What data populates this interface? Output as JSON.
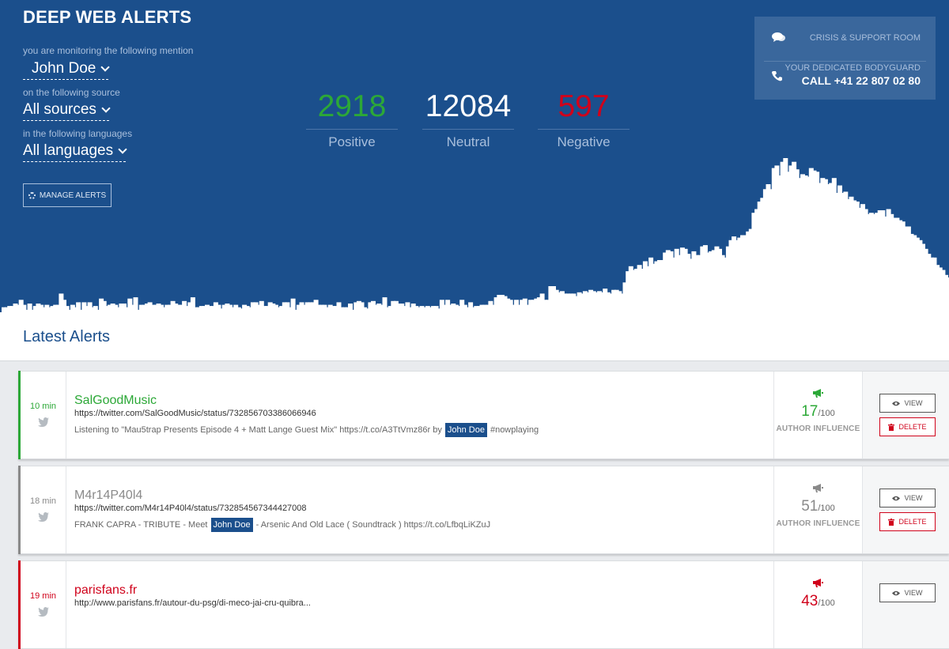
{
  "header": {
    "title": "DEEP WEB ALERTS",
    "monitor_label": "you are monitoring the following mention",
    "mention": "John Doe",
    "source_label": "on the following source",
    "source": "All sources",
    "language_label": "in the following languages",
    "language": "All languages",
    "manage_label": "MANAGE ALERTS"
  },
  "stats": {
    "positive": {
      "value": "2918",
      "label": "Positive",
      "color": "#2ca837"
    },
    "neutral": {
      "value": "12084",
      "label": "Neutral",
      "color": "#ffffff"
    },
    "negative": {
      "value": "597",
      "label": "Negative",
      "color": "#d0021b"
    }
  },
  "support": {
    "crisis_label": "CRISIS & SUPPORT ROOM",
    "bodyguard_label": "YOUR DEDICATED BODYGUARD",
    "phone": "CALL +41 22 807 02 80",
    "crisis_icon": "chat-bubbles-icon",
    "phone_icon": "phone-icon"
  },
  "latest": {
    "title": "Latest Alerts"
  },
  "alerts": [
    {
      "time": "10 min",
      "source": "SalGoodMusic",
      "url": "https://twitter.com/SalGoodMusic/status/732856703386066946",
      "snippet_before": "Listening to \"Mau5trap Presents Episode 4 + Matt Lange Guest Mix\" https://t.co/A3TtVmz86r by",
      "highlight": "John Doe",
      "snippet_after": "#nowplaying",
      "score": "17",
      "score_max": "/100",
      "influence_label": "AUTHOR INFLUENCE",
      "view_label": "VIEW",
      "delete_label": "DELETE",
      "color": "#2ca837"
    },
    {
      "time": "18 min",
      "source": "M4r14P40l4",
      "url": "https://twitter.com/M4r14P40l4/status/732854567344427008",
      "snippet_before": "FRANK CAPRA - TRIBUTE - Meet",
      "highlight": "John Doe",
      "snippet_after": "- Arsenic And Old Lace ( Soundtrack ) https://t.co/LfbqLiKZuJ",
      "score": "51",
      "score_max": "/100",
      "influence_label": "AUTHOR INFLUENCE",
      "view_label": "VIEW",
      "delete_label": "DELETE",
      "color": "#8a8a8a"
    },
    {
      "time": "19 min",
      "source": "parisfans.fr",
      "url": "http://www.parisfans.fr/autour-du-psg/di-meco-jai-cru-quibra...",
      "snippet_before": "",
      "highlight": "",
      "snippet_after": "",
      "score": "43",
      "score_max": "/100",
      "influence_label": "",
      "view_label": "VIEW",
      "delete_label": "",
      "color": "#d0021b"
    }
  ],
  "chart_data": {
    "type": "bar",
    "stacked": true,
    "colors": {
      "neutral": "#ffffff",
      "positive": "#2ca837",
      "negative": "#d0021b"
    },
    "neutral": [
      4,
      4,
      5,
      5,
      7,
      6,
      10,
      6,
      2,
      7,
      2,
      5,
      7,
      6,
      4,
      6,
      4,
      5,
      6,
      6,
      15,
      10,
      5,
      2,
      6,
      4,
      8,
      2,
      8,
      5,
      8,
      4,
      5,
      2,
      11,
      9,
      5,
      6,
      7,
      6,
      4,
      7,
      7,
      4,
      11,
      6,
      12,
      2,
      6,
      6,
      7,
      8,
      6,
      6,
      7,
      6,
      4,
      6,
      6,
      9,
      7,
      6,
      6,
      9,
      5,
      8,
      12,
      4,
      4,
      5,
      5,
      6,
      5,
      5,
      8,
      6,
      3,
      6,
      7,
      6,
      4,
      6,
      4,
      3,
      6,
      5,
      4,
      8,
      8,
      6,
      9,
      5,
      5,
      8,
      7,
      6,
      4,
      5,
      8,
      8,
      4,
      11,
      2,
      6,
      8,
      6,
      8,
      8,
      8,
      10,
      6,
      6,
      6,
      4,
      6,
      5,
      5,
      8,
      4,
      4,
      4,
      7,
      2,
      8,
      9,
      8,
      4,
      3,
      8,
      9,
      6,
      7,
      6,
      12,
      4,
      5,
      9,
      9,
      7,
      7,
      5,
      8,
      4,
      7,
      5,
      4,
      5,
      4,
      5,
      4,
      5,
      5,
      3,
      10,
      6,
      10,
      6,
      7,
      6,
      5,
      10,
      6,
      4,
      8,
      4,
      5,
      5,
      6,
      6,
      6,
      9,
      6,
      12,
      14,
      14,
      13,
      11,
      10,
      6,
      10,
      6,
      10,
      11,
      6,
      10,
      10,
      11,
      12,
      15,
      10,
      10,
      21,
      21,
      18,
      16,
      17,
      15,
      15,
      15,
      15,
      13,
      16,
      15,
      17,
      16,
      18,
      17,
      16,
      17,
      16,
      19,
      16,
      15,
      18,
      18,
      17,
      15,
      24,
      33,
      37,
      34,
      35,
      38,
      35,
      41,
      37,
      44,
      39,
      41,
      42,
      42,
      48,
      50,
      49,
      44,
      51,
      46,
      52,
      51,
      47,
      43,
      49,
      46,
      46,
      53,
      54,
      48,
      49,
      50,
      53,
      51,
      46,
      44,
      53,
      58,
      61,
      58,
      60,
      62,
      62,
      65,
      67,
      80,
      83,
      89,
      92,
      99,
      103,
      99,
      116,
      118,
      110,
      121,
      124,
      113,
      118,
      121,
      115,
      108,
      111,
      110,
      109,
      116,
      114,
      113,
      104,
      108,
      107,
      103,
      104,
      108,
      96,
      102,
      96,
      97,
      91,
      93,
      90,
      89,
      84,
      87,
      83,
      79,
      80,
      79,
      80,
      82,
      82,
      77,
      83,
      79,
      76,
      76,
      74,
      73,
      69,
      69,
      63,
      62,
      60,
      58,
      55,
      51,
      47,
      44,
      44,
      38,
      36,
      34,
      30,
      28
    ],
    "bars_note": ""
  }
}
